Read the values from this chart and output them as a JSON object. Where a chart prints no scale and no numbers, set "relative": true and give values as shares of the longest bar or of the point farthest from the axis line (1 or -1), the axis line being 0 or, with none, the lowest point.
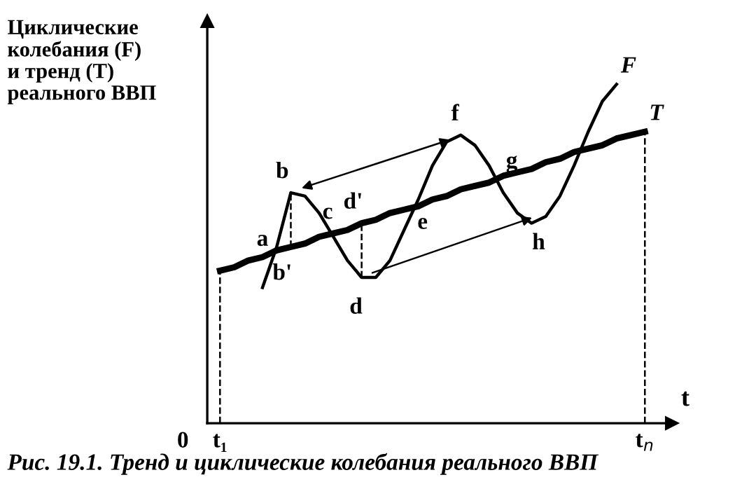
{
  "chart_data": {
    "type": "line",
    "relative": true,
    "title": "Рис. 19.1. Тренд и циклические колебания реального ВВП",
    "ylabel": "Циклические\nколебания (F)\nи тренд (T)\nреального ВВП",
    "xlabel": "t",
    "categories": [
      "t₁",
      null,
      null,
      null,
      null,
      null,
      null,
      null,
      null,
      null,
      null,
      null,
      null,
      null,
      null,
      null,
      null,
      null,
      null,
      null,
      null,
      null,
      null,
      null,
      null,
      null,
      null,
      null,
      null,
      null,
      "t$_{n}$"
    ],
    "series": [
      {
        "name": "F",
        "color": "#000000",
        "values": [
          null,
          null,
          null,
          0.4,
          0.52,
          0.68,
          0.67,
          0.62,
          0.55,
          0.48,
          0.43,
          0.43,
          0.48,
          0.57,
          0.66,
          0.76,
          0.83,
          0.85,
          0.82,
          0.76,
          0.68,
          0.62,
          0.59,
          0.61,
          0.67,
          0.76,
          0.86,
          0.95,
          1.0,
          null,
          null
        ]
      },
      {
        "name": "T",
        "color": "#000000",
        "values": [
          0.45,
          0.46,
          0.48,
          0.49,
          0.51,
          0.52,
          0.53,
          0.55,
          0.56,
          0.57,
          0.59,
          0.6,
          0.62,
          0.63,
          0.64,
          0.66,
          0.67,
          0.69,
          0.7,
          0.71,
          0.73,
          0.74,
          0.75,
          0.77,
          0.78,
          0.8,
          0.81,
          0.82,
          0.84,
          0.85,
          0.86
        ]
      }
    ],
    "annotations": [
      "a",
      "b",
      "b'",
      "c",
      "d",
      "d'",
      "e",
      "f",
      "g",
      "h",
      "0"
    ],
    "marker": "none",
    "line_style": "solid"
  }
}
